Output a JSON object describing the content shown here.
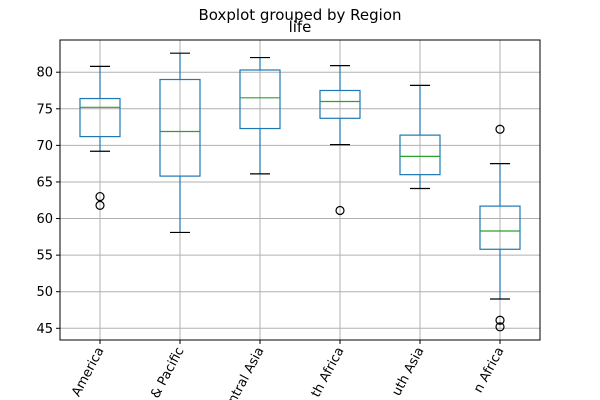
{
  "chart_data": {
    "type": "box",
    "suptitle": "Boxplot grouped by Region",
    "title": "life",
    "xlabel": "",
    "ylabel": "",
    "ylim": [
      43.4,
      84.4
    ],
    "yticks": [
      45,
      50,
      55,
      60,
      65,
      70,
      75,
      80
    ],
    "grid": true,
    "colors": {
      "box": "#1f77b4",
      "median": "#2ca02c",
      "flier": "#000000",
      "grid": "#b0b0b0"
    },
    "categories": [
      "America",
      "& Pacific",
      "ntral Asia",
      "th Africa",
      "uth Asia",
      "n Africa"
    ],
    "boxes": [
      {
        "whislo": 69.2,
        "q1": 71.2,
        "med": 75.2,
        "q3": 76.4,
        "whishi": 80.8,
        "fliers": [
          63.0,
          61.8
        ]
      },
      {
        "whislo": 58.1,
        "q1": 65.8,
        "med": 71.9,
        "q3": 79.0,
        "whishi": 82.6,
        "fliers": []
      },
      {
        "whislo": 66.1,
        "q1": 72.3,
        "med": 76.5,
        "q3": 80.3,
        "whishi": 82.0,
        "fliers": []
      },
      {
        "whislo": 70.1,
        "q1": 73.7,
        "med": 76.0,
        "q3": 77.5,
        "whishi": 80.9,
        "fliers": [
          61.1
        ]
      },
      {
        "whislo": 64.1,
        "q1": 66.0,
        "med": 68.5,
        "q3": 71.4,
        "whishi": 78.2,
        "fliers": []
      },
      {
        "whislo": 49.0,
        "q1": 55.8,
        "med": 58.3,
        "q3": 61.7,
        "whishi": 67.5,
        "fliers": [
          72.2,
          46.1,
          45.2
        ]
      }
    ]
  }
}
